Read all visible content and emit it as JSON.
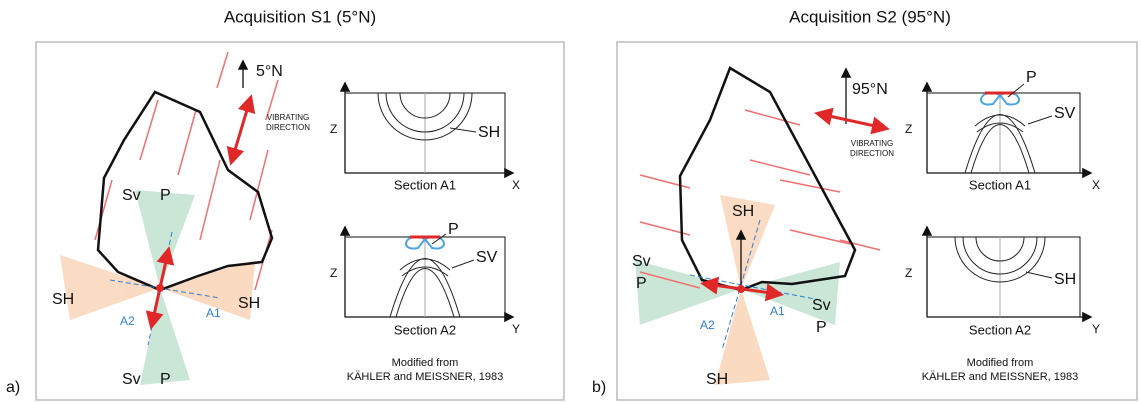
{
  "panels": [
    {
      "label": "a)",
      "title": "Acquisition S1 (5°N)",
      "azimuth": "5°N",
      "vibrating": [
        "VIBRATING",
        "DIRECTION"
      ],
      "map_labels": [
        "Sv",
        "P",
        "SH",
        "SH",
        "A2",
        "A1",
        "Sv",
        "P"
      ],
      "sections": [
        {
          "axis_v": "Z",
          "axis_h": "X",
          "wave_labels": [
            "SH"
          ],
          "caption": "Section A1"
        },
        {
          "axis_v": "Z",
          "axis_h": "Y",
          "wave_labels": [
            "P",
            "SV"
          ],
          "caption": "Section A2"
        }
      ],
      "credit": [
        "Modified from",
        "KÄHLER and MEISSNER, 1983"
      ]
    },
    {
      "label": "b)",
      "title": "Acquisition S2 (95°N)",
      "azimuth": "95°N",
      "vibrating": [
        "VIBRATING",
        "DIRECTION"
      ],
      "map_labels": [
        "SH",
        "Sv",
        "P",
        "A2",
        "A1",
        "Sv",
        "P",
        "SH"
      ],
      "sections": [
        {
          "axis_v": "Z",
          "axis_h": "X",
          "wave_labels": [
            "P",
            "SV"
          ],
          "caption": "Section A1"
        },
        {
          "axis_v": "Z",
          "axis_h": "Y",
          "wave_labels": [
            "SH"
          ],
          "caption": "Section A2"
        }
      ],
      "credit": [
        "Modified from",
        "KÄHLER and MEISSNER, 1983"
      ]
    }
  ]
}
